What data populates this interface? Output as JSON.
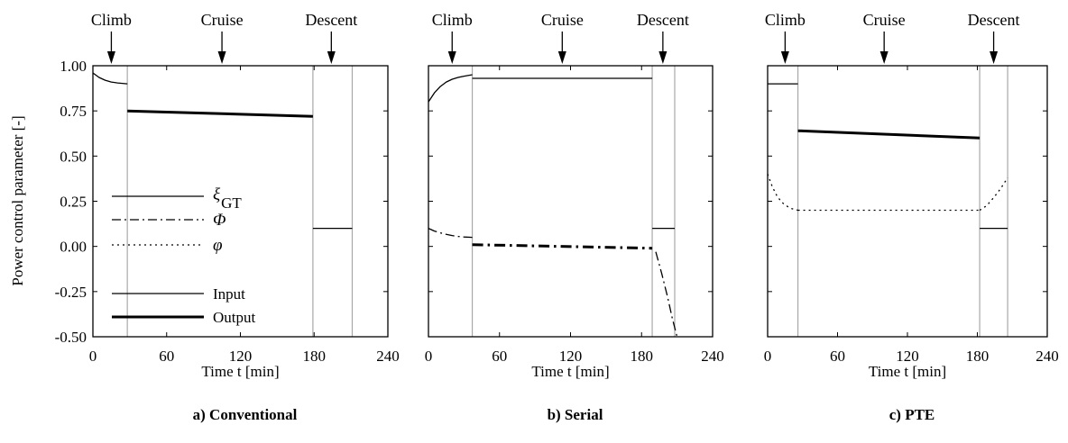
{
  "chart_data": [
    {
      "type": "line",
      "caption": "a) Conventional",
      "xlabel": "Time t [min]",
      "ylabel": "Power control parameter [-]",
      "xlim": [
        0,
        240
      ],
      "ylim": [
        -0.5,
        1.0
      ],
      "xticks": [
        "0",
        "60",
        "120",
        "180",
        "240"
      ],
      "yticks": [
        "1.00",
        "0.75",
        "0.50",
        "0.25",
        "0.00",
        "-0.25",
        "-0.50"
      ],
      "phases": [
        {
          "label": "Climb",
          "t": 15
        },
        {
          "label": "Cruise",
          "t": 105
        },
        {
          "label": "Descent",
          "t": 194
        }
      ],
      "dividers": [
        28,
        179,
        211
      ],
      "series": [
        {
          "name": "ξGT",
          "segments": [
            {
              "style": "input",
              "x": [
                0,
                5,
                10,
                15,
                20,
                28
              ],
              "y": [
                0.96,
                0.935,
                0.92,
                0.91,
                0.905,
                0.9
              ]
            },
            {
              "style": "output",
              "x": [
                28,
                179
              ],
              "y": [
                0.75,
                0.72
              ]
            },
            {
              "style": "input",
              "x": [
                179,
                211
              ],
              "y": [
                0.1,
                0.1
              ]
            }
          ]
        }
      ],
      "legend": {
        "entries": [
          {
            "label": "ξGT",
            "sub": "GT",
            "style": "solid"
          },
          {
            "label": "Φ",
            "style": "dashdot"
          },
          {
            "label": "φ",
            "style": "dotted"
          },
          {
            "label": "Input",
            "style": "input"
          },
          {
            "label": "Output",
            "style": "output"
          }
        ]
      }
    },
    {
      "type": "line",
      "caption": "b) Serial",
      "xlabel": "Time t [min]",
      "xlim": [
        0,
        240
      ],
      "ylim": [
        -0.5,
        1.0
      ],
      "xticks": [
        "0",
        "60",
        "120",
        "180",
        "240"
      ],
      "phases": [
        {
          "label": "Climb",
          "t": 20
        },
        {
          "label": "Cruise",
          "t": 113
        },
        {
          "label": "Descent",
          "t": 198
        }
      ],
      "dividers": [
        37,
        189,
        208
      ],
      "series": [
        {
          "name": "ξGT",
          "segments": [
            {
              "style": "input",
              "x": [
                0,
                5,
                10,
                15,
                20,
                25,
                30,
                37
              ],
              "y": [
                0.8,
                0.85,
                0.885,
                0.91,
                0.925,
                0.935,
                0.942,
                0.95
              ]
            },
            {
              "style": "input",
              "x": [
                37,
                189
              ],
              "y": [
                0.93,
                0.93
              ]
            },
            {
              "style": "input",
              "x": [
                189,
                208
              ],
              "y": [
                0.1,
                0.1
              ]
            }
          ]
        },
        {
          "name": "Φ",
          "segments": [
            {
              "style": "input",
              "x": [
                0,
                5,
                10,
                15,
                20,
                25,
                30,
                37
              ],
              "y": [
                0.1,
                0.085,
                0.075,
                0.067,
                0.06,
                0.055,
                0.052,
                0.05
              ]
            },
            {
              "style": "output",
              "x": [
                37,
                189
              ],
              "y": [
                0.01,
                -0.01
              ]
            },
            {
              "style": "input",
              "x": [
                192,
                197,
                202,
                206,
                210
              ],
              "y": [
                -0.03,
                -0.15,
                -0.28,
                -0.4,
                -0.5
              ]
            }
          ]
        }
      ]
    },
    {
      "type": "line",
      "caption": "c) PTE",
      "xlabel": "Time t [min]",
      "xlim": [
        0,
        240
      ],
      "ylim": [
        -0.5,
        1.0
      ],
      "xticks": [
        "0",
        "60",
        "120",
        "180",
        "240"
      ],
      "phases": [
        {
          "label": "Climb",
          "t": 15
        },
        {
          "label": "Cruise",
          "t": 100
        },
        {
          "label": "Descent",
          "t": 194
        }
      ],
      "dividers": [
        26,
        182,
        206
      ],
      "series": [
        {
          "name": "ξGT",
          "segments": [
            {
              "style": "input",
              "x": [
                0,
                26
              ],
              "y": [
                0.9,
                0.9
              ]
            },
            {
              "style": "output",
              "x": [
                26,
                182
              ],
              "y": [
                0.64,
                0.6
              ]
            },
            {
              "style": "input",
              "x": [
                182,
                206
              ],
              "y": [
                0.1,
                0.1
              ]
            }
          ]
        },
        {
          "name": "φ",
          "segments": [
            {
              "style": "input",
              "x": [
                0,
                4,
                8,
                12,
                16,
                20,
                26
              ],
              "y": [
                0.4,
                0.33,
                0.28,
                0.245,
                0.225,
                0.21,
                0.2
              ]
            },
            {
              "style": "input",
              "x": [
                26,
                182
              ],
              "y": [
                0.2,
                0.2
              ]
            },
            {
              "style": "input",
              "x": [
                182,
                188,
                194,
                200,
                206
              ],
              "y": [
                0.2,
                0.225,
                0.27,
                0.32,
                0.38
              ]
            }
          ]
        }
      ]
    }
  ]
}
